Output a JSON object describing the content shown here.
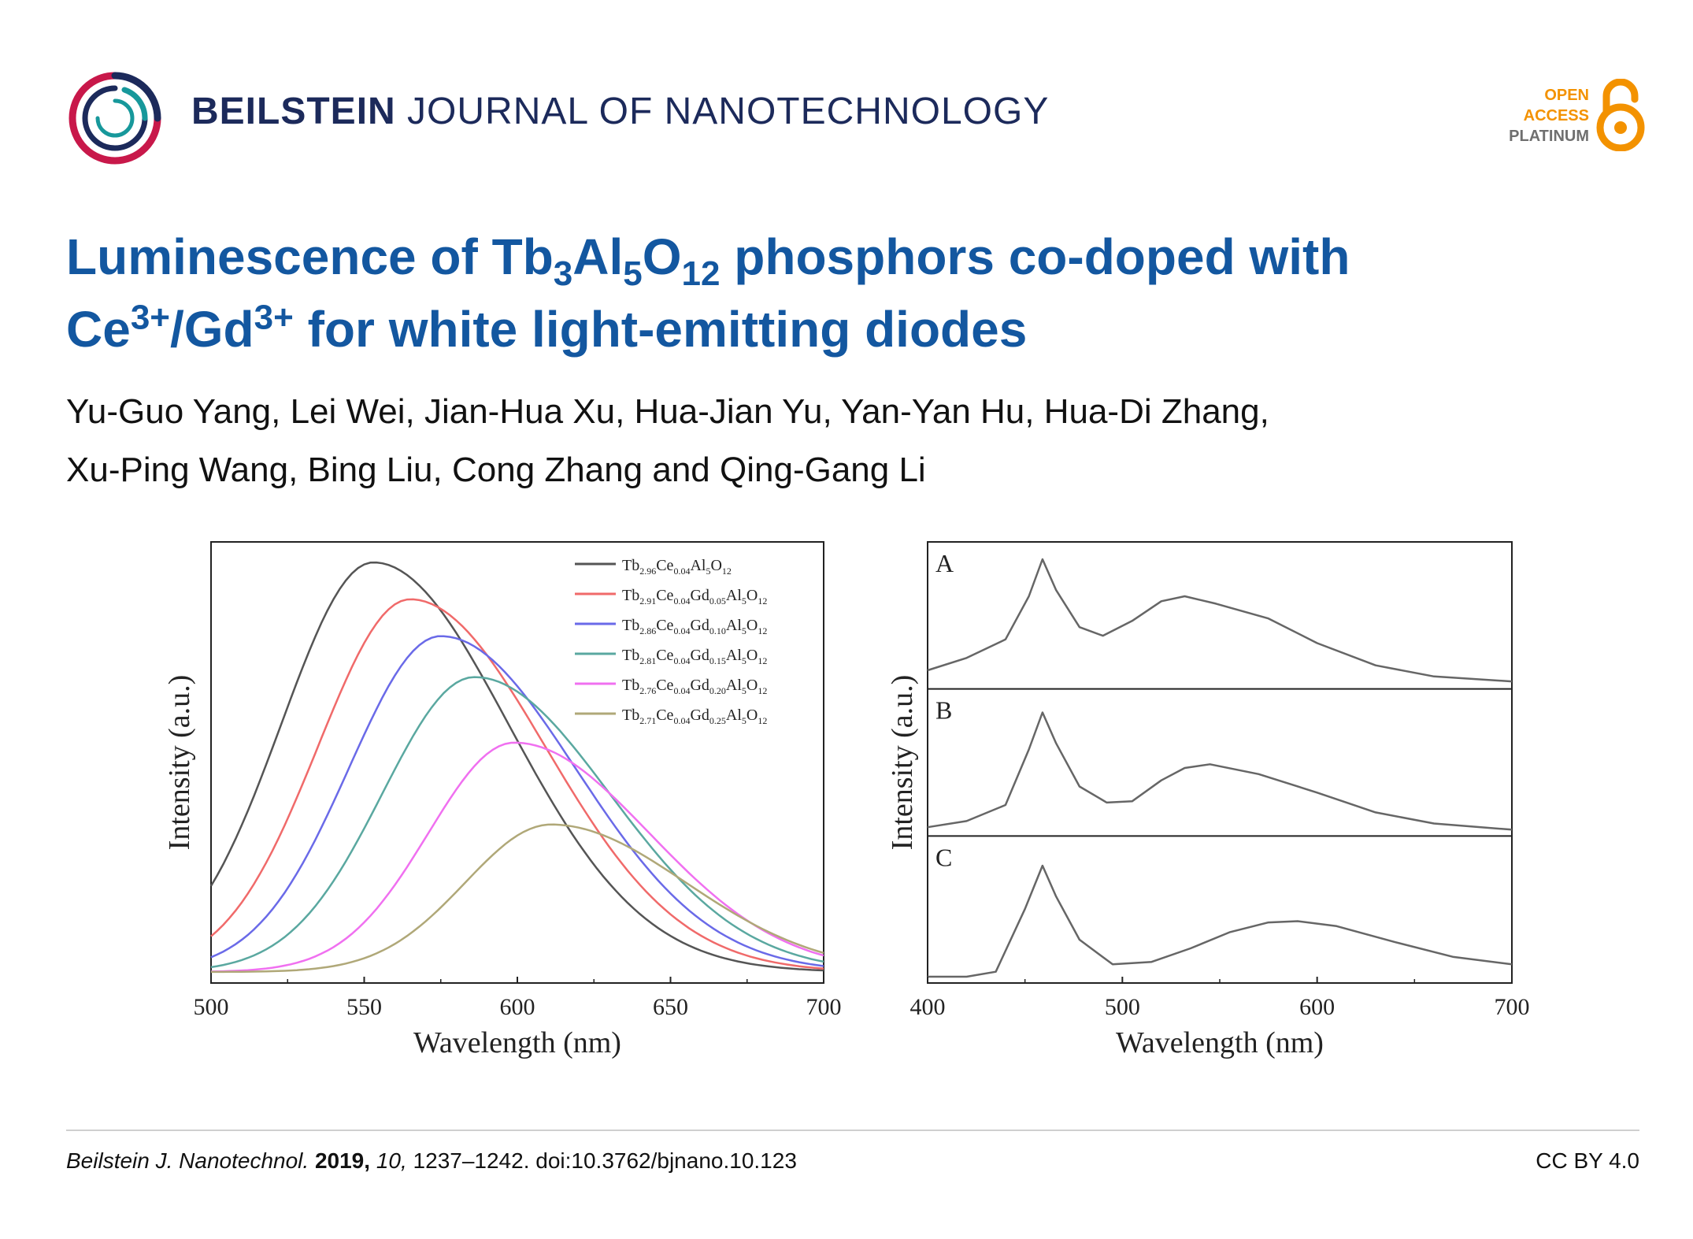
{
  "header": {
    "journal_bold": "BEILSTEIN",
    "journal_rest": "JOURNAL OF NANOTECHNOLOGY",
    "oa_line1": "OPEN",
    "oa_line2": "ACCESS",
    "oa_line3": "PLATINUM"
  },
  "title": {
    "p1": "Luminescence of Tb",
    "s1": "3",
    "p2": "Al",
    "s2": "5",
    "p3": "O",
    "s3": "12",
    "p4": " phosphors co-doped with",
    "p5": "Ce",
    "sup1": "3+",
    "p6": "/Gd",
    "sup2": "3+",
    "p7": " for white light-emitting diodes"
  },
  "authors": {
    "line1": "Yu-Guo Yang, Lei Wei, Jian-Hua Xu, Hua-Jian Yu, Yan-Yan Hu, Hua-Di Zhang,",
    "line2": "Xu-Ping Wang, Bing Liu, Cong Zhang and Qing-Gang Li"
  },
  "footer": {
    "journal": "Beilstein J. Nanotechnol.",
    "year": "2019,",
    "volume": "10,",
    "pages": "1237–1242. doi:10.3762/bjnano.10.123",
    "license": "CC BY 4.0"
  },
  "colors": {
    "title_blue": "#1357a0",
    "journal_navy": "#1c2a5b",
    "oa_orange": "#f39200"
  },
  "chart_data": [
    {
      "type": "line",
      "xlabel": "Wavelength (nm)",
      "ylabel": "Intensity (a.u.)",
      "xlim": [
        500,
        700
      ],
      "ylim": [
        0,
        1.05
      ],
      "xticks": [
        500,
        550,
        600,
        650,
        700
      ],
      "legend": "top-right",
      "series": [
        {
          "name": "Tb2.96Ce0.04Al5O12",
          "base": "Tb",
          "parts": [
            [
              "2.96",
              "Ce"
            ],
            [
              "0.04",
              "Al"
            ],
            [
              "5",
              "O"
            ],
            [
              "12",
              ""
            ]
          ],
          "color": "#555555",
          "peak": 553,
          "amp": 1.0,
          "left": 30,
          "right": 44
        },
        {
          "name": "Tb2.91Ce0.04Gd0.05Al5O12",
          "base": "Tb",
          "parts": [
            [
              "2.91",
              "Ce"
            ],
            [
              "0.04",
              "Gd"
            ],
            [
              "0.05",
              "Al"
            ],
            [
              "5",
              "O"
            ],
            [
              "12",
              ""
            ]
          ],
          "color": "#f06a6a",
          "peak": 565,
          "amp": 0.91,
          "left": 30,
          "right": 44
        },
        {
          "name": "Tb2.86Ce0.04Gd0.10Al5O12",
          "base": "Tb",
          "parts": [
            [
              "2.86",
              "Ce"
            ],
            [
              "0.04",
              "Gd"
            ],
            [
              "0.10",
              "Al"
            ],
            [
              "5",
              "O"
            ],
            [
              "12",
              ""
            ]
          ],
          "color": "#6a6ae8",
          "peak": 575,
          "amp": 0.82,
          "left": 30,
          "right": 44
        },
        {
          "name": "Tb2.81Ce0.04Gd0.15Al5O12",
          "base": "Tb",
          "parts": [
            [
              "2.81",
              "Ce"
            ],
            [
              "0.04",
              "Gd"
            ],
            [
              "0.15",
              "Al"
            ],
            [
              "5",
              "O"
            ],
            [
              "12",
              ""
            ]
          ],
          "color": "#5aa8a0",
          "peak": 586,
          "amp": 0.72,
          "left": 30,
          "right": 44
        },
        {
          "name": "Tb2.76Ce0.04Gd0.20Al5O12",
          "base": "Tb",
          "parts": [
            [
              "2.76",
              "Ce"
            ],
            [
              "0.04",
              "Gd"
            ],
            [
              "0.20",
              "Al"
            ],
            [
              "5",
              "O"
            ],
            [
              "12",
              ""
            ]
          ],
          "color": "#f070f0",
          "peak": 599,
          "amp": 0.56,
          "left": 28,
          "right": 44
        },
        {
          "name": "Tb2.71Ce0.04Gd0.25Al5O12",
          "base": "Tb",
          "parts": [
            [
              "2.71",
              "Ce"
            ],
            [
              "0.04",
              "Gd"
            ],
            [
              "0.25",
              "Al"
            ],
            [
              "5",
              "O"
            ],
            [
              "12",
              ""
            ]
          ],
          "color": "#b0a878",
          "peak": 611,
          "amp": 0.36,
          "left": 28,
          "right": 44
        }
      ]
    },
    {
      "type": "line",
      "xlabel": "Wavelength (nm)",
      "ylabel": "Intensity (a.u.)",
      "xlim": [
        400,
        700
      ],
      "xticks": [
        400,
        500,
        600,
        700
      ],
      "panels": [
        {
          "label": "A",
          "points": [
            [
              400,
              0.1
            ],
            [
              420,
              0.2
            ],
            [
              440,
              0.35
            ],
            [
              452,
              0.7
            ],
            [
              459,
              1.0
            ],
            [
              466,
              0.75
            ],
            [
              478,
              0.45
            ],
            [
              490,
              0.38
            ],
            [
              505,
              0.5
            ],
            [
              520,
              0.66
            ],
            [
              532,
              0.7
            ],
            [
              548,
              0.64
            ],
            [
              575,
              0.52
            ],
            [
              600,
              0.32
            ],
            [
              630,
              0.14
            ],
            [
              660,
              0.05
            ],
            [
              700,
              0.01
            ]
          ]
        },
        {
          "label": "B",
          "points": [
            [
              400,
              0.02
            ],
            [
              420,
              0.07
            ],
            [
              440,
              0.2
            ],
            [
              452,
              0.65
            ],
            [
              459,
              0.95
            ],
            [
              466,
              0.7
            ],
            [
              478,
              0.35
            ],
            [
              492,
              0.22
            ],
            [
              505,
              0.23
            ],
            [
              520,
              0.4
            ],
            [
              532,
              0.5
            ],
            [
              545,
              0.53
            ],
            [
              570,
              0.45
            ],
            [
              600,
              0.3
            ],
            [
              630,
              0.14
            ],
            [
              660,
              0.05
            ],
            [
              700,
              0.0
            ]
          ]
        },
        {
          "label": "C",
          "points": [
            [
              400,
              0.0
            ],
            [
              420,
              0.0
            ],
            [
              435,
              0.04
            ],
            [
              450,
              0.55
            ],
            [
              459,
              0.9
            ],
            [
              466,
              0.65
            ],
            [
              478,
              0.3
            ],
            [
              495,
              0.1
            ],
            [
              515,
              0.12
            ],
            [
              535,
              0.23
            ],
            [
              555,
              0.36
            ],
            [
              575,
              0.44
            ],
            [
              590,
              0.45
            ],
            [
              610,
              0.41
            ],
            [
              640,
              0.28
            ],
            [
              670,
              0.16
            ],
            [
              700,
              0.1
            ]
          ]
        }
      ]
    }
  ]
}
